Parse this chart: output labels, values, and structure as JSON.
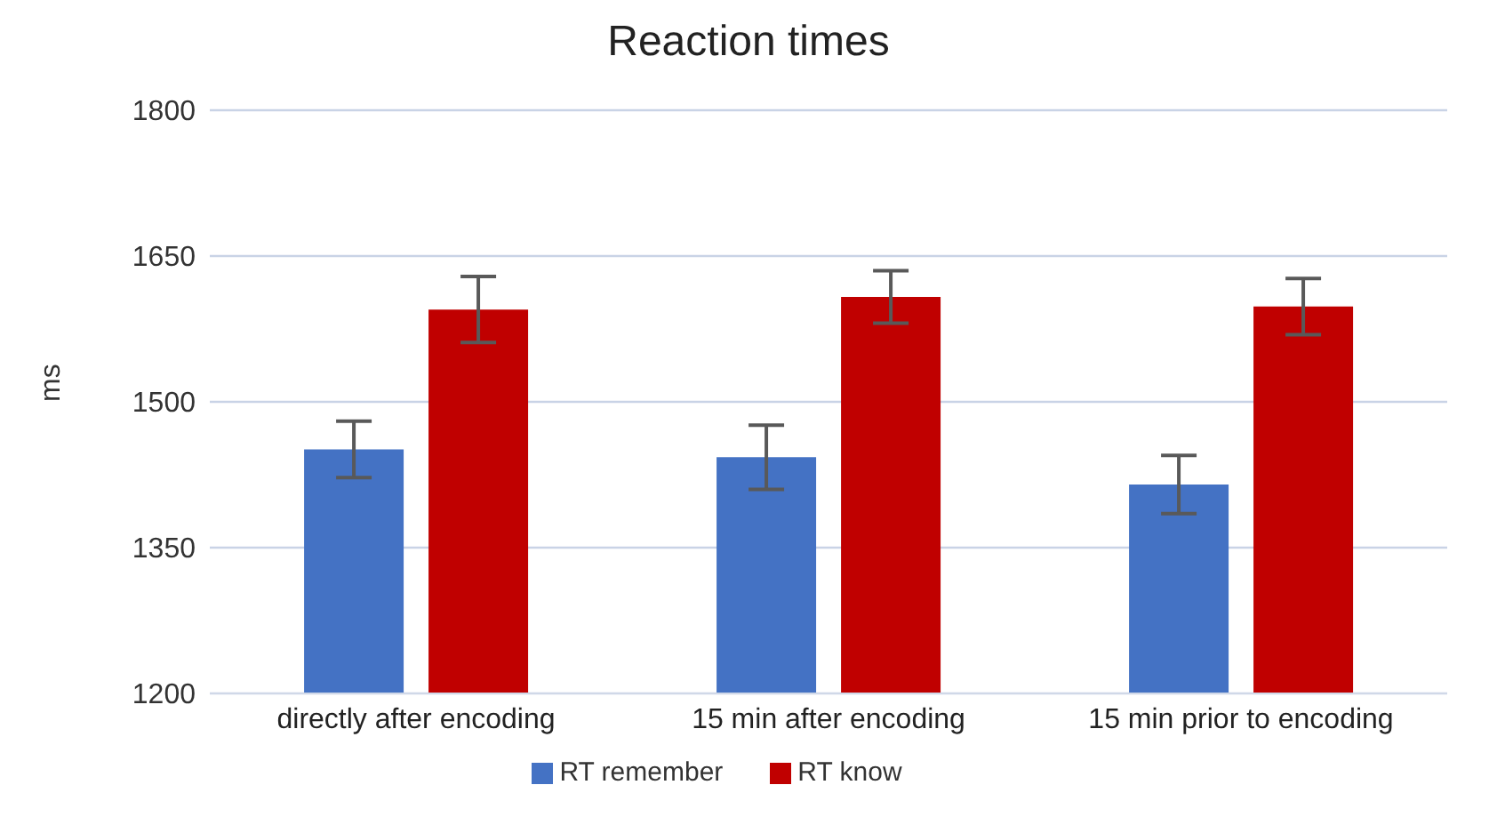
{
  "chart_data": {
    "type": "bar",
    "title": "Reaction times",
    "ylabel": "ms",
    "categories": [
      "directly after encoding",
      "15 min after encoding",
      "15 min prior to encoding"
    ],
    "series": [
      {
        "name": "RT remember",
        "color": "#4472c4",
        "values": [
          1451,
          1443,
          1415
        ],
        "errors": [
          29,
          33,
          30
        ]
      },
      {
        "name": "RT know",
        "color": "#c00000",
        "values": [
          1595,
          1608,
          1598
        ],
        "errors": [
          34,
          27,
          29
        ]
      }
    ],
    "ylim": [
      1200,
      1800
    ],
    "yticks": [
      1200,
      1350,
      1500,
      1650,
      1800
    ],
    "grid": "y",
    "legend": "bottom"
  }
}
